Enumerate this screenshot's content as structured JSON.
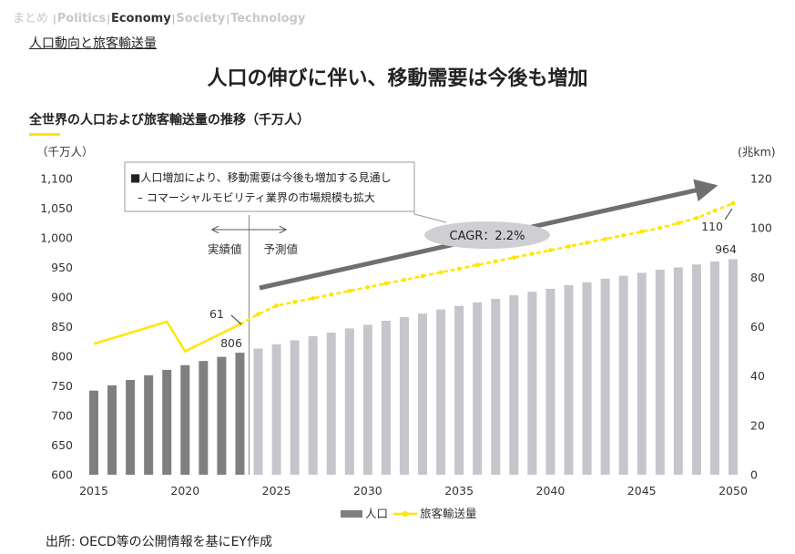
{
  "nav": {
    "lead": "まとめ",
    "separator": "|",
    "items": [
      {
        "label": "Politics",
        "active": false
      },
      {
        "label": "Economy",
        "active": true
      },
      {
        "label": "Society",
        "active": false
      },
      {
        "label": "Technology",
        "active": false
      }
    ]
  },
  "section_title": "人口動向と旅客輸送量",
  "main_title": "人口の伸びに伴い、移動需要は今後も増加",
  "chart_heading": "全世界の人口および旅客輸送量の推移（千万人）",
  "source": "出所: OECD等の公開情報を基にEY作成",
  "colors": {
    "actual_bar": "#7f7f7f",
    "forecast_bar": "#c5c5cc",
    "line": "#ffe600",
    "arrow": "#6f6f6f",
    "accent": "#ffe600"
  },
  "chart_data": {
    "type": "bar",
    "left_axis_unit": "（千万人）",
    "right_axis_unit": "(兆km)",
    "x_ticks": [
      "2015",
      "2020",
      "2025",
      "2030",
      "2035",
      "2040",
      "2045",
      "2050"
    ],
    "ylim_left": [
      600,
      1100
    ],
    "yticks_left": [
      "600",
      "650",
      "700",
      "750",
      "800",
      "850",
      "900",
      "950",
      "1,000",
      "1,050",
      "1,100"
    ],
    "ylim_right": [
      0,
      120
    ],
    "yticks_right": [
      "0",
      "20",
      "40",
      "60",
      "80",
      "100",
      "120"
    ],
    "divider_year": 2023.5,
    "actual_label": "実績値",
    "forecast_label": "予測値",
    "note_lines": [
      "■人口増加により、移動需要は今後も増加する見通し",
      "– コマーシャルモビリティ業界の市場規模も拡大"
    ],
    "cagr_label": "CAGR：2.2%",
    "data_labels": {
      "population_2023": "806",
      "population_2050": "964",
      "transport_2023": "61",
      "transport_2050": "110"
    },
    "series": [
      {
        "name": "人口",
        "axis": "left",
        "years": [
          2015,
          2016,
          2017,
          2018,
          2019,
          2020,
          2021,
          2022,
          2023,
          2024,
          2025,
          2026,
          2027,
          2028,
          2029,
          2030,
          2031,
          2032,
          2033,
          2034,
          2035,
          2036,
          2037,
          2038,
          2039,
          2040,
          2041,
          2042,
          2043,
          2044,
          2045,
          2046,
          2047,
          2048,
          2049,
          2050
        ],
        "values": [
          742,
          751,
          760,
          768,
          777,
          785,
          792,
          799,
          806,
          813,
          820,
          827,
          834,
          840,
          847,
          853,
          860,
          866,
          872,
          879,
          885,
          891,
          897,
          903,
          909,
          914,
          920,
          925,
          931,
          936,
          941,
          946,
          950,
          955,
          960,
          964
        ]
      },
      {
        "name": "旅客輸送量",
        "axis": "right",
        "actual": {
          "years": [
            2015,
            2019,
            2020,
            2023
          ],
          "values": [
            53,
            62,
            50,
            61
          ]
        },
        "forecast": {
          "years": [
            2023,
            2024,
            2025,
            2026,
            2027,
            2028,
            2029,
            2030,
            2031,
            2032,
            2033,
            2034,
            2035,
            2036,
            2037,
            2038,
            2039,
            2040,
            2041,
            2042,
            2043,
            2044,
            2045,
            2046,
            2047,
            2048,
            2049,
            2050
          ],
          "values": [
            61,
            65,
            68.5,
            70,
            71.5,
            73,
            74.5,
            76,
            77.5,
            79,
            80.5,
            82,
            83.5,
            85,
            86.5,
            88,
            89.5,
            91,
            92.5,
            94,
            95.5,
            97,
            98.5,
            100,
            102,
            104,
            107,
            110
          ]
        }
      }
    ]
  }
}
